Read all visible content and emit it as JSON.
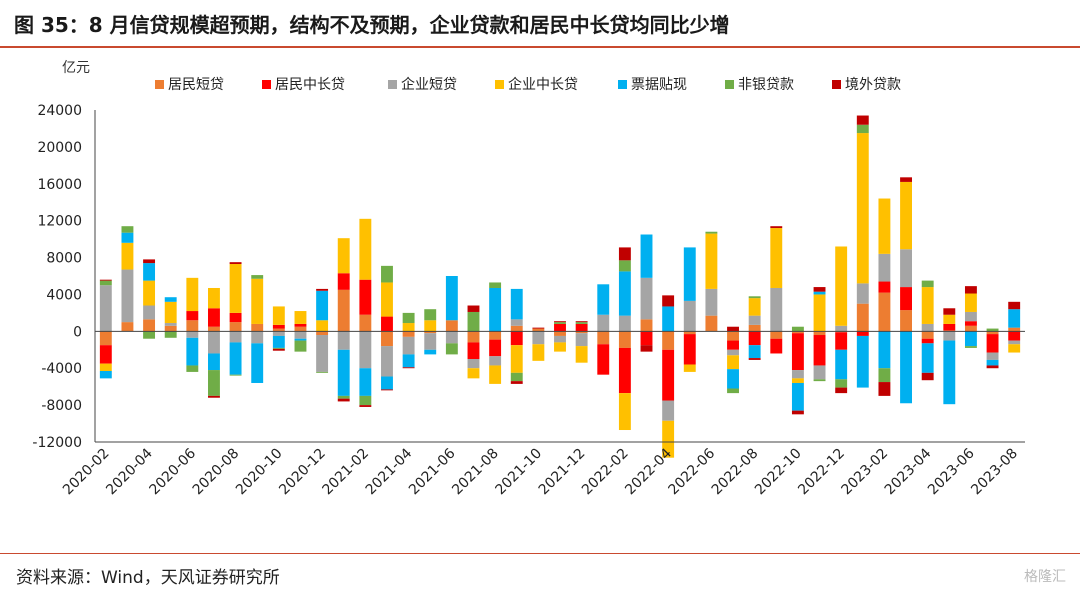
{
  "header": {
    "title": "图 35：8 月信贷规模超预期，结构不及预期，企业贷款和居民中长贷均同比少增"
  },
  "footer": {
    "source": "资料来源：Wind，天风证券研究所",
    "watermark": "格隆汇"
  },
  "colors": {
    "居民短贷": "#ed7d31",
    "居民中长贷": "#ff0000",
    "企业短贷": "#a5a5a5",
    "企业中长贷": "#ffc000",
    "票据贴现": "#00b0f0",
    "非银贷款": "#70ad47",
    "境外贷款": "#c00000"
  },
  "chart_data": {
    "type": "bar",
    "stacked": true,
    "unit_label": "亿元",
    "ylim": [
      -12000,
      24000
    ],
    "yticks": [
      24000,
      20000,
      16000,
      12000,
      8000,
      4000,
      0,
      -4000,
      -8000,
      -12000
    ],
    "legend_position": "top",
    "categories": [
      "2020-02",
      "2020-03",
      "2020-04",
      "2020-05",
      "2020-06",
      "2020-07",
      "2020-08",
      "2020-09",
      "2020-10",
      "2020-11",
      "2020-12",
      "2021-01",
      "2021-02",
      "2021-03",
      "2021-04",
      "2021-05",
      "2021-06",
      "2021-07",
      "2021-08",
      "2021-09",
      "2021-10",
      "2021-11",
      "2021-12",
      "2022-01",
      "2022-02",
      "2022-03",
      "2022-04",
      "2022-05",
      "2022-06",
      "2022-07",
      "2022-08",
      "2022-09",
      "2022-10",
      "2022-11",
      "2022-12",
      "2023-01",
      "2023-02",
      "2023-03",
      "2023-04",
      "2023-05",
      "2023-06",
      "2023-07",
      "2023-08"
    ],
    "xtick_labels": [
      "2020-02",
      "2020-04",
      "2020-06",
      "2020-08",
      "2020-10",
      "2020-12",
      "2021-02",
      "2021-04",
      "2021-06",
      "2021-08",
      "2021-10",
      "2021-12",
      "2022-02",
      "2022-04",
      "2022-06",
      "2022-08",
      "2022-10",
      "2022-12",
      "2023-02",
      "2023-04",
      "2023-06",
      "2023-08"
    ],
    "series": [
      {
        "name": "居民短贷",
        "values": [
          -1500,
          1000,
          1300,
          600,
          1200,
          500,
          1000,
          800,
          300,
          500,
          -400,
          4500,
          1800,
          -1600,
          -600,
          -200,
          1200,
          -1200,
          -900,
          600,
          300,
          -500,
          -200,
          -1400,
          -1800,
          1300,
          -2000,
          -300,
          1700,
          -1000,
          700,
          -800,
          -200,
          -400,
          -100,
          3000,
          4200,
          2300,
          -800,
          100,
          600,
          -300,
          400
        ]
      },
      {
        "name": "居民中长贷",
        "values": [
          -2000,
          0,
          0,
          0,
          1000,
          2000,
          1000,
          0,
          400,
          300,
          0,
          1800,
          3800,
          1600,
          0,
          0,
          0,
          -1800,
          -1800,
          -1500,
          0,
          800,
          800,
          -3300,
          -4900,
          -1500,
          -5500,
          -3300,
          0,
          -1000,
          -1500,
          -1600,
          -4000,
          -3300,
          -1900,
          -500,
          1200,
          2500,
          -500,
          700,
          500,
          -2000,
          -1000
        ]
      },
      {
        "name": "企业短贷",
        "values": [
          5000,
          5700,
          1500,
          300,
          -700,
          -2400,
          -1200,
          -1300,
          -500,
          -800,
          -4000,
          -2000,
          -4000,
          -3300,
          -1900,
          -1800,
          -1300,
          -1000,
          -1000,
          700,
          -1400,
          -700,
          -1400,
          1800,
          1700,
          4500,
          -2200,
          3300,
          2900,
          -600,
          1000,
          4700,
          -900,
          -1500,
          600,
          2200,
          3000,
          4100,
          800,
          -1000,
          1000,
          -800,
          -400
        ]
      },
      {
        "name": "企业中长贷",
        "values": [
          -800,
          2900,
          2700,
          2300,
          3600,
          2200,
          5300,
          4900,
          2000,
          1400,
          1200,
          3800,
          6600,
          3700,
          900,
          1200,
          0,
          -1100,
          -2000,
          -3000,
          -1800,
          -1000,
          -1800,
          0,
          -4000,
          0,
          -4000,
          -800,
          6000,
          -1500,
          1900,
          6500,
          -500,
          4000,
          8600,
          16300,
          6000,
          7300,
          4000,
          1000,
          2000,
          0,
          -900
        ]
      },
      {
        "name": "票据贴现",
        "values": [
          -800,
          1100,
          1900,
          500,
          -3000,
          -1800,
          -3500,
          -4300,
          -1300,
          -200,
          3200,
          -5000,
          -3000,
          -1400,
          -1400,
          -500,
          4800,
          0,
          4700,
          3300,
          0,
          0,
          0,
          3300,
          4800,
          4700,
          2700,
          5800,
          0,
          -2100,
          -1400,
          0,
          -3000,
          300,
          -3200,
          -5600,
          -4000,
          -7800,
          -3200,
          -6900,
          -1600,
          -600,
          2000
        ]
      },
      {
        "name": "非银贷款",
        "values": [
          500,
          700,
          -800,
          -700,
          -700,
          -2800,
          -100,
          400,
          -100,
          -1200,
          -100,
          -300,
          -1000,
          1800,
          1100,
          1200,
          -1200,
          2100,
          600,
          -900,
          0,
          200,
          200,
          0,
          1200,
          0,
          0,
          0,
          200,
          -500,
          200,
          0,
          500,
          -200,
          -900,
          900,
          -1500,
          0,
          700,
          0,
          -200,
          300,
          0
        ]
      },
      {
        "name": "境外贷款",
        "values": [
          100,
          0,
          400,
          0,
          0,
          -200,
          200,
          0,
          -200,
          0,
          200,
          -300,
          -200,
          -100,
          -100,
          0,
          0,
          700,
          0,
          -300,
          100,
          100,
          100,
          0,
          1400,
          -700,
          1200,
          0,
          0,
          500,
          -200,
          200,
          -400,
          500,
          -600,
          1000,
          -1500,
          500,
          -800,
          700,
          800,
          -300,
          800
        ]
      }
    ]
  }
}
